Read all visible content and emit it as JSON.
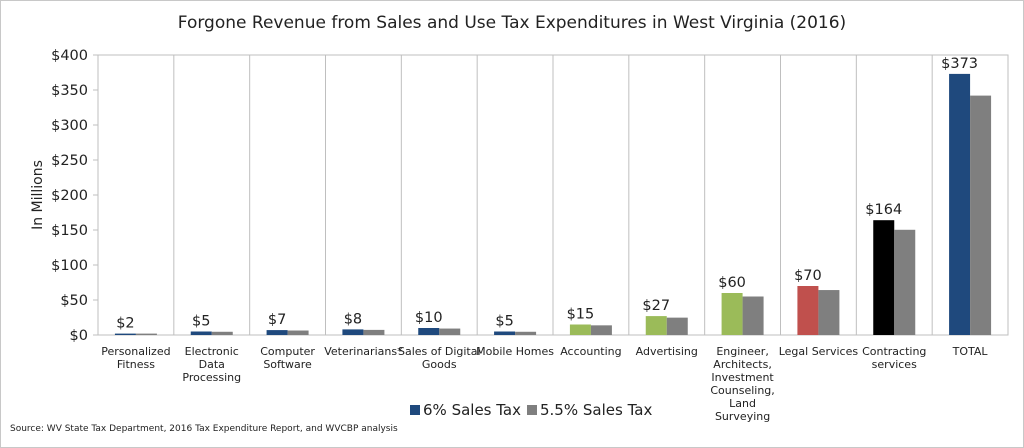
{
  "chart_data": {
    "type": "bar",
    "title": "Forgone Revenue from Sales and Use Tax Expenditures in West Virginia (2016)",
    "ylabel": "In Millions",
    "ylim": [
      0,
      400
    ],
    "yticks": [
      "$0",
      "$50",
      "$100",
      "$150",
      "$200",
      "$250",
      "$300",
      "$350",
      "$400"
    ],
    "grid": "vertical",
    "legend_position": "bottom",
    "categories": [
      [
        "Personalized",
        "Fitness"
      ],
      [
        "Electronic",
        "Data",
        "Processing"
      ],
      [
        "Computer",
        "Software"
      ],
      [
        "Veterinarians*"
      ],
      [
        "Sales of Digital",
        "Goods"
      ],
      [
        "Mobile Homes"
      ],
      [
        "Accounting"
      ],
      [
        "Advertising"
      ],
      [
        "Engineer,",
        "Architects,",
        "Investment",
        "Counseling,",
        "Land",
        "Surveying"
      ],
      [
        "Legal Services"
      ],
      [
        "Contracting",
        "services"
      ],
      [
        "TOTAL"
      ]
    ],
    "series": [
      {
        "name": "6% Sales Tax",
        "color": "#1f497d",
        "values": [
          2,
          5,
          7,
          8,
          10,
          5,
          15,
          27,
          60,
          70,
          164,
          373
        ],
        "labels": [
          "$2",
          "$5",
          "$7",
          "$8",
          "$10",
          "$5",
          "$15",
          "$27",
          "$60",
          "$70",
          "$164",
          "$373"
        ],
        "point_colors": [
          "#1f497d",
          "#1f497d",
          "#1f497d",
          "#1f497d",
          "#1f497d",
          "#1f497d",
          "#9bbb59",
          "#9bbb59",
          "#9bbb59",
          "#c0504d",
          "#000000",
          "#1f497d"
        ]
      },
      {
        "name": "5.5% Sales Tax",
        "color": "#7f7f7f",
        "values": [
          2,
          4.6,
          6.4,
          7.3,
          9.2,
          4.6,
          13.8,
          24.8,
          55,
          64.2,
          150.3,
          342
        ]
      }
    ]
  },
  "source": "Source: WV State Tax Department, 2016 Tax Expenditure Report, and WVCBP analysis"
}
